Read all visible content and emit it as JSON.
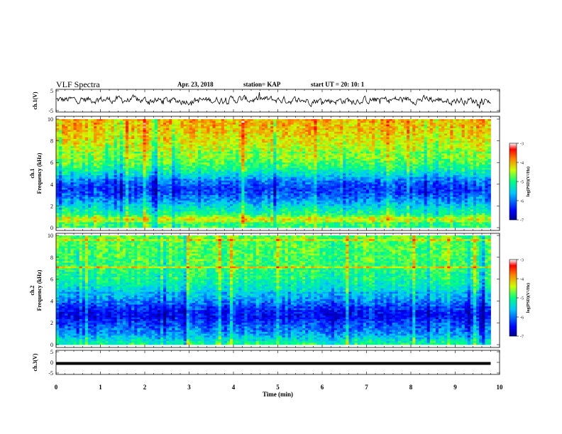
{
  "header": {
    "title": "VLF Spectra",
    "date": "Apr. 23, 2018",
    "station": "station= KAP",
    "start_ut": "start  UT =   20: 10: 1"
  },
  "chart_data": {
    "type": "heatmap",
    "x_axis": {
      "label": "Time  (min)",
      "range": [
        0,
        10
      ],
      "ticks": [
        "0",
        "1",
        "2",
        "3",
        "4",
        "5",
        "6",
        "7",
        "8",
        "9",
        "10"
      ]
    },
    "panels": [
      {
        "id": "waveform-ch1",
        "type": "line",
        "ylabel": "ch.1(V)",
        "ylim": [
          -5,
          5
        ],
        "yticks": [
          "5",
          "-5"
        ],
        "x_end": 9.8,
        "baseline": 0.3,
        "amplitude": 1.2
      },
      {
        "id": "spectrogram-ch1",
        "type": "heatmap",
        "ylabel_top": "ch.1",
        "ylabel": "Frequency  (kHz)",
        "ylim": [
          0,
          10
        ],
        "yticks": [
          "0",
          "2",
          "4",
          "6",
          "8",
          "10"
        ],
        "x_end": 9.8,
        "freq_profile_khz": [
          [
            0,
            -4.9
          ],
          [
            0.5,
            -4.9
          ],
          [
            0.8,
            -4.2
          ],
          [
            1.2,
            -5.0
          ],
          [
            1.8,
            -5.3
          ],
          [
            2.2,
            -5.6
          ],
          [
            3,
            -6.1
          ],
          [
            3.5,
            -6.3
          ],
          [
            4.2,
            -6.0
          ],
          [
            4.8,
            -5.5
          ],
          [
            5.5,
            -5.0
          ],
          [
            6.5,
            -4.6
          ],
          [
            7.5,
            -4.4
          ],
          [
            8.5,
            -4.2
          ],
          [
            10,
            -4.0
          ]
        ],
        "colorbar": {
          "label": "log(PSD)(V²/Hz)",
          "range": [
            -7,
            -3
          ],
          "ticks": [
            "-3",
            "-4",
            "-5",
            "-6",
            "-7"
          ]
        }
      },
      {
        "id": "spectrogram-ch2",
        "type": "heatmap",
        "ylabel_top": "ch.2",
        "ylabel": "Frequency  (kHz)",
        "ylim": [
          0,
          10
        ],
        "yticks": [
          "0",
          "2",
          "4",
          "6",
          "8",
          "10"
        ],
        "x_end": 9.8,
        "freq_profile_khz": [
          [
            0,
            -5.0
          ],
          [
            0.5,
            -5.4
          ],
          [
            1,
            -5.8
          ],
          [
            1.5,
            -6.0
          ],
          [
            2,
            -6.2
          ],
          [
            2.5,
            -6.5
          ],
          [
            3.2,
            -6.4
          ],
          [
            3.8,
            -6.0
          ],
          [
            4.5,
            -5.6
          ],
          [
            5.5,
            -5.2
          ],
          [
            7,
            -4.9
          ],
          [
            8.5,
            -4.8
          ],
          [
            10,
            -4.7
          ]
        ],
        "colorbar": {
          "label": "log(PSD)(V²/Hz)",
          "range": [
            -7,
            -3
          ],
          "ticks": [
            "-3",
            "-4",
            "-5",
            "-6",
            "-7"
          ]
        }
      },
      {
        "id": "waveform-ch3",
        "type": "line",
        "ylabel": "ch.3(V)",
        "ylim": [
          -5,
          5
        ],
        "yticks": [
          "5",
          "0",
          "-5"
        ],
        "x_end": 9.8,
        "baseline": -0.5,
        "amplitude": 0.0
      }
    ]
  }
}
